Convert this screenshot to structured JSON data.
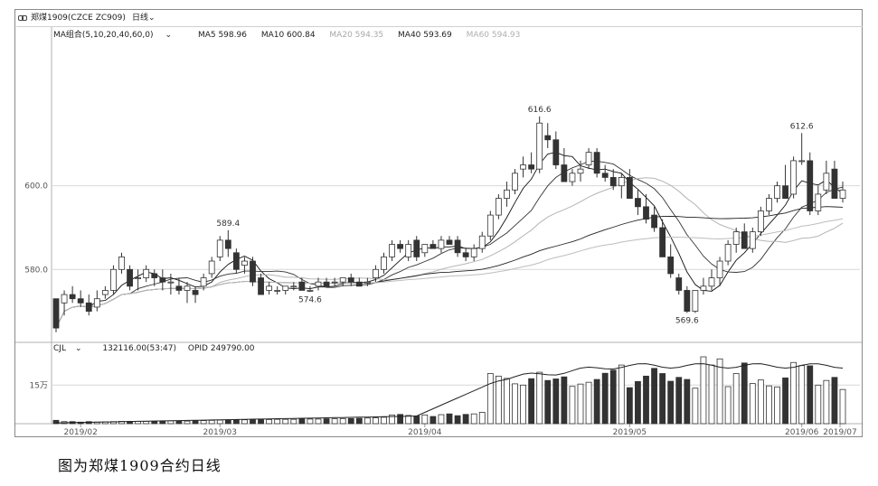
{
  "header": {
    "ticker": "郑煤1909(CZCE ZC909)",
    "period": "日线",
    "period_arrow": "chevron-down-icon",
    "link_icon": "link-icon"
  },
  "ma_legend": {
    "group": "MA组合(5,10,20,40,60,0)",
    "items": [
      {
        "label": "MA5 598.96",
        "color": "#111111"
      },
      {
        "label": "MA10 600.84",
        "color": "#333333"
      },
      {
        "label": "MA20 594.35",
        "color": "#b5b5b5"
      },
      {
        "label": "MA40 593.69",
        "color": "#222222"
      },
      {
        "label": "MA60 594.93",
        "color": "#bdbdbd"
      }
    ]
  },
  "volume_legend": {
    "name": "CJL",
    "value": "132116.00(53:47)",
    "opid": "OPID 249790.00"
  },
  "caption": "图为郑煤1909合约日线",
  "colors": {
    "up": "#ffffff",
    "down": "#333333",
    "wick": "#333333",
    "grid": "#d8d8d8"
  },
  "chart_data": {
    "type": "candlestick",
    "y_axis": {
      "ticks": [
        "600.0",
        "580.0"
      ],
      "range": [
        563,
        636
      ]
    },
    "volume_axis": {
      "ticks": [
        "15万"
      ]
    },
    "x_axis": {
      "ticks": [
        "2019/02",
        "2019/03",
        "2019/04",
        "2019/05",
        "2019/06",
        "2019/07"
      ]
    },
    "annotations": [
      {
        "text": "589.4",
        "value": 589.4,
        "type": "high"
      },
      {
        "text": "574.6",
        "value": 574.6,
        "type": "low"
      },
      {
        "text": "616.6",
        "value": 616.6,
        "type": "high"
      },
      {
        "text": "569.6",
        "value": 569.6,
        "type": "low"
      },
      {
        "text": "612.6",
        "value": 612.6,
        "type": "high"
      }
    ],
    "ohlc": [
      [
        573,
        573,
        565,
        566
      ],
      [
        572,
        575,
        569,
        574
      ],
      [
        574,
        576,
        572,
        573
      ],
      [
        573,
        575,
        571,
        572
      ],
      [
        572,
        574,
        569,
        570
      ],
      [
        571,
        575,
        570,
        573
      ],
      [
        574,
        576,
        573,
        575
      ],
      [
        575,
        581,
        574,
        580
      ],
      [
        580,
        584,
        579,
        583
      ],
      [
        580,
        581,
        575,
        576
      ],
      [
        578,
        580,
        575,
        578
      ],
      [
        578,
        581,
        577,
        580
      ],
      [
        579,
        580,
        576,
        578
      ],
      [
        578,
        580,
        575,
        577
      ],
      [
        577,
        579,
        574,
        577
      ],
      [
        576,
        578,
        574,
        575
      ],
      [
        575,
        577,
        572,
        576
      ],
      [
        575,
        576,
        572,
        574
      ],
      [
        576,
        579,
        575,
        578
      ],
      [
        579,
        583,
        578,
        582
      ],
      [
        583,
        588,
        582,
        587
      ],
      [
        587,
        589.4,
        583,
        585
      ],
      [
        584,
        585,
        579,
        580
      ],
      [
        581,
        583,
        579,
        582
      ],
      [
        582,
        583,
        576,
        577
      ],
      [
        578,
        579,
        574,
        574
      ],
      [
        575,
        577,
        574,
        576
      ],
      [
        575,
        576,
        574,
        575
      ],
      [
        575,
        576,
        574,
        576
      ],
      [
        576,
        577,
        575,
        576
      ],
      [
        577,
        578,
        575,
        575
      ],
      [
        575,
        576,
        574.6,
        575
      ],
      [
        576,
        578,
        575,
        577
      ],
      [
        577,
        578,
        576,
        576
      ],
      [
        577,
        578,
        576,
        577
      ],
      [
        577,
        578,
        576,
        578
      ],
      [
        578,
        579,
        576,
        577
      ],
      [
        577,
        578,
        576,
        576
      ],
      [
        577,
        578,
        576,
        577
      ],
      [
        578,
        581,
        577,
        580
      ],
      [
        580,
        584,
        579,
        583
      ],
      [
        583,
        587,
        582,
        586
      ],
      [
        586,
        587,
        584,
        585
      ],
      [
        583,
        587,
        582,
        586
      ],
      [
        587,
        588,
        582,
        583
      ],
      [
        584,
        586,
        583,
        586
      ],
      [
        586,
        587,
        585,
        585
      ],
      [
        585,
        588,
        584,
        587
      ],
      [
        587,
        588,
        586,
        586
      ],
      [
        587,
        588,
        583,
        584
      ],
      [
        584,
        585,
        582,
        583
      ],
      [
        583,
        586,
        582,
        585
      ],
      [
        585,
        589,
        584,
        588
      ],
      [
        588,
        594,
        587,
        593
      ],
      [
        593,
        598,
        592,
        597
      ],
      [
        597,
        601,
        595,
        599
      ],
      [
        599,
        604,
        598,
        603
      ],
      [
        604,
        607,
        602,
        605
      ],
      [
        605,
        608,
        603,
        604
      ],
      [
        604,
        616.6,
        603,
        615
      ],
      [
        612,
        615,
        609,
        611
      ],
      [
        611,
        613,
        604,
        605
      ],
      [
        605,
        609,
        601,
        601
      ],
      [
        601,
        604,
        600,
        603
      ],
      [
        603,
        606,
        601,
        604
      ],
      [
        605,
        609,
        604,
        608
      ],
      [
        608,
        609,
        602,
        603
      ],
      [
        603,
        605,
        601,
        602
      ],
      [
        602,
        604,
        599,
        600
      ],
      [
        600,
        603,
        597,
        602
      ],
      [
        602,
        604,
        597,
        597
      ],
      [
        597,
        599,
        593,
        595
      ],
      [
        595,
        598,
        591,
        592
      ],
      [
        593,
        595,
        589,
        590
      ],
      [
        590,
        592,
        583,
        583
      ],
      [
        583,
        586,
        578,
        579
      ],
      [
        578,
        579,
        574,
        575
      ],
      [
        575,
        576,
        569.6,
        570
      ],
      [
        570,
        575,
        569.6,
        575
      ],
      [
        575,
        578,
        574,
        576
      ],
      [
        576,
        580,
        575,
        578
      ],
      [
        578,
        583,
        576,
        582
      ],
      [
        582,
        587,
        581,
        586
      ],
      [
        586,
        590,
        584,
        589
      ],
      [
        589,
        591,
        585,
        585
      ],
      [
        585,
        590,
        584,
        589
      ],
      [
        589,
        595,
        588,
        594
      ],
      [
        594,
        598,
        593,
        597
      ],
      [
        597,
        601,
        596,
        600
      ],
      [
        600,
        605,
        597,
        597
      ],
      [
        598,
        607,
        597,
        606
      ],
      [
        606,
        612.6,
        605,
        606
      ],
      [
        606,
        608,
        593,
        594
      ],
      [
        594,
        600,
        593,
        598
      ],
      [
        599,
        606,
        598,
        603
      ],
      [
        604,
        606,
        597,
        597
      ],
      [
        597,
        601,
        596,
        599
      ]
    ],
    "volume": [
      1.3,
      0.8,
      0.8,
      0.6,
      0.8,
      0.6,
      0.7,
      0.8,
      0.9,
      0.9,
      0.9,
      0.9,
      1.0,
      1.0,
      1.1,
      1.0,
      1.0,
      1.1,
      1.2,
      1.3,
      1.4,
      1.5,
      1.5,
      1.5,
      1.6,
      1.6,
      1.6,
      1.7,
      1.7,
      1.7,
      1.8,
      1.8,
      1.8,
      1.9,
      1.9,
      2.0,
      2.0,
      2.1,
      2.2,
      2.3,
      2.5,
      3.4,
      3.6,
      3.2,
      3.0,
      3.4,
      2.8,
      3.5,
      3.8,
      3.1,
      3.6,
      3.8,
      4.4,
      19.5,
      18.5,
      17.6,
      15.5,
      15.0,
      17.5,
      20.0,
      16.8,
      17.4,
      18.2,
      14.5,
      15.4,
      16.1,
      17.2,
      19.6,
      20.8,
      22.8,
      14.0,
      16.4,
      18.5,
      21.5,
      19.5,
      16.5,
      18.0,
      17.2,
      13.8,
      26.0,
      22.8,
      25.2,
      14.4,
      19.5,
      23.6,
      15.6,
      17.0,
      14.7,
      14.3,
      17.8,
      23.8,
      22.6,
      22.5,
      15.0,
      16.8,
      18.0,
      13.3
    ]
  }
}
